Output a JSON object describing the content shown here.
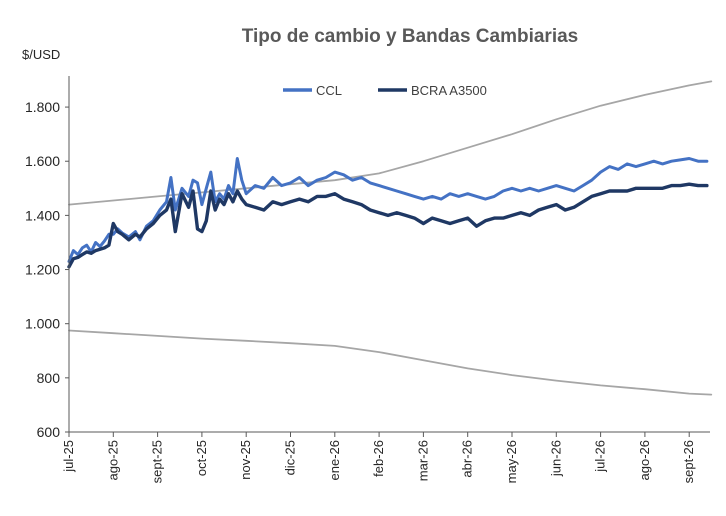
{
  "chart_data": {
    "type": "line",
    "title": "Tipo de cambio y Bandas Cambiarias",
    "ylabel": "$/USD",
    "xlabel": "",
    "ylim": [
      600,
      1900
    ],
    "y_ticks": [
      600,
      800,
      1000,
      1200,
      1400,
      1600,
      1800
    ],
    "y_tick_labels": [
      "600",
      "800",
      "1.000",
      "1.200",
      "1.400",
      "1.600",
      "1.800"
    ],
    "categories": [
      "jul-25",
      "ago-25",
      "sept-25",
      "oct-25",
      "nov-25",
      "dic-25",
      "ene-26",
      "feb-26",
      "mar-26",
      "abr-26",
      "may-26",
      "jun-26",
      "jul-26",
      "ago-26",
      "sept-26"
    ],
    "x_axis": "monthly, jul-25 to sept-26",
    "grid": false,
    "legend": "top-center",
    "colors": {
      "ccl": "#4472C4",
      "bcra": "#1F3864",
      "bands": "#A6A6A6",
      "axis": "#595959"
    },
    "series": [
      {
        "name": "CCL",
        "x": [
          0,
          0.1,
          0.2,
          0.3,
          0.4,
          0.5,
          0.6,
          0.7,
          0.8,
          0.9,
          1,
          1.1,
          1.2,
          1.35,
          1.5,
          1.6,
          1.75,
          1.9,
          2.05,
          2.2,
          2.3,
          2.4,
          2.55,
          2.7,
          2.8,
          2.9,
          3,
          3.1,
          3.2,
          3.3,
          3.4,
          3.5,
          3.6,
          3.7,
          3.8,
          3.9,
          4,
          4.2,
          4.4,
          4.6,
          4.8,
          5,
          5.2,
          5.4,
          5.6,
          5.8,
          6,
          6.2,
          6.4,
          6.6,
          6.8,
          7,
          7.2,
          7.4,
          7.6,
          7.8,
          8,
          8.2,
          8.4,
          8.6,
          8.8,
          9,
          9.2,
          9.4,
          9.6,
          9.8,
          10,
          10.2,
          10.4,
          10.6,
          10.8,
          11,
          11.2,
          11.4,
          11.6,
          11.8,
          12,
          12.2,
          12.4,
          12.6,
          12.8,
          13,
          13.2,
          13.4,
          13.6,
          13.8,
          14,
          14.2,
          14.4
        ],
        "values": [
          1230,
          1270,
          1255,
          1280,
          1290,
          1265,
          1300,
          1285,
          1305,
          1330,
          1330,
          1350,
          1335,
          1320,
          1340,
          1310,
          1360,
          1380,
          1420,
          1450,
          1540,
          1420,
          1500,
          1470,
          1530,
          1520,
          1440,
          1500,
          1560,
          1450,
          1480,
          1460,
          1510,
          1480,
          1610,
          1530,
          1480,
          1510,
          1500,
          1540,
          1510,
          1520,
          1540,
          1510,
          1530,
          1540,
          1560,
          1550,
          1530,
          1540,
          1520,
          1510,
          1500,
          1490,
          1480,
          1470,
          1460,
          1470,
          1460,
          1480,
          1470,
          1480,
          1470,
          1460,
          1470,
          1490,
          1500,
          1490,
          1500,
          1490,
          1500,
          1510,
          1500,
          1490,
          1510,
          1530,
          1560,
          1580,
          1570,
          1590,
          1580,
          1590,
          1600,
          1590,
          1600,
          1605,
          1610,
          1600,
          1600
        ]
      },
      {
        "name": "BCRA A3500",
        "x": [
          0,
          0.1,
          0.2,
          0.3,
          0.4,
          0.5,
          0.6,
          0.7,
          0.8,
          0.9,
          1,
          1.1,
          1.2,
          1.35,
          1.5,
          1.6,
          1.75,
          1.9,
          2.05,
          2.2,
          2.3,
          2.4,
          2.55,
          2.7,
          2.8,
          2.9,
          3,
          3.1,
          3.2,
          3.3,
          3.4,
          3.5,
          3.6,
          3.7,
          3.8,
          3.9,
          4,
          4.2,
          4.4,
          4.6,
          4.8,
          5,
          5.2,
          5.4,
          5.6,
          5.8,
          6,
          6.2,
          6.4,
          6.6,
          6.8,
          7,
          7.2,
          7.4,
          7.6,
          7.8,
          8,
          8.2,
          8.4,
          8.6,
          8.8,
          9,
          9.2,
          9.4,
          9.6,
          9.8,
          10,
          10.2,
          10.4,
          10.6,
          10.8,
          11,
          11.2,
          11.4,
          11.6,
          11.8,
          12,
          12.2,
          12.4,
          12.6,
          12.8,
          13,
          13.2,
          13.4,
          13.6,
          13.8,
          14,
          14.2,
          14.4
        ],
        "values": [
          1210,
          1240,
          1245,
          1255,
          1265,
          1260,
          1270,
          1275,
          1280,
          1290,
          1370,
          1340,
          1330,
          1310,
          1330,
          1320,
          1350,
          1370,
          1400,
          1420,
          1460,
          1340,
          1480,
          1430,
          1490,
          1350,
          1340,
          1380,
          1490,
          1420,
          1460,
          1440,
          1480,
          1450,
          1490,
          1460,
          1440,
          1430,
          1420,
          1450,
          1440,
          1450,
          1460,
          1450,
          1470,
          1470,
          1480,
          1460,
          1450,
          1440,
          1420,
          1410,
          1400,
          1410,
          1400,
          1390,
          1370,
          1390,
          1380,
          1370,
          1380,
          1390,
          1360,
          1380,
          1390,
          1390,
          1400,
          1410,
          1400,
          1420,
          1430,
          1440,
          1420,
          1430,
          1450,
          1470,
          1480,
          1490,
          1490,
          1490,
          1500,
          1500,
          1500,
          1500,
          1510,
          1510,
          1515,
          1510,
          1510
        ]
      },
      {
        "name": "",
        "x": [
          0,
          1,
          2,
          3,
          4,
          5,
          6,
          7,
          8,
          9,
          10,
          11,
          12,
          13,
          14,
          14.5
        ],
        "values": [
          1440,
          1455,
          1470,
          1485,
          1500,
          1515,
          1530,
          1555,
          1600,
          1650,
          1700,
          1755,
          1805,
          1845,
          1880,
          1895
        ]
      },
      {
        "name": "",
        "x": [
          0,
          1,
          2,
          3,
          4,
          5,
          6,
          7,
          8,
          9,
          10,
          11,
          12,
          13,
          14,
          14.5
        ],
        "values": [
          975,
          965,
          955,
          945,
          937,
          928,
          918,
          895,
          865,
          835,
          810,
          790,
          772,
          758,
          742,
          738
        ]
      }
    ]
  }
}
